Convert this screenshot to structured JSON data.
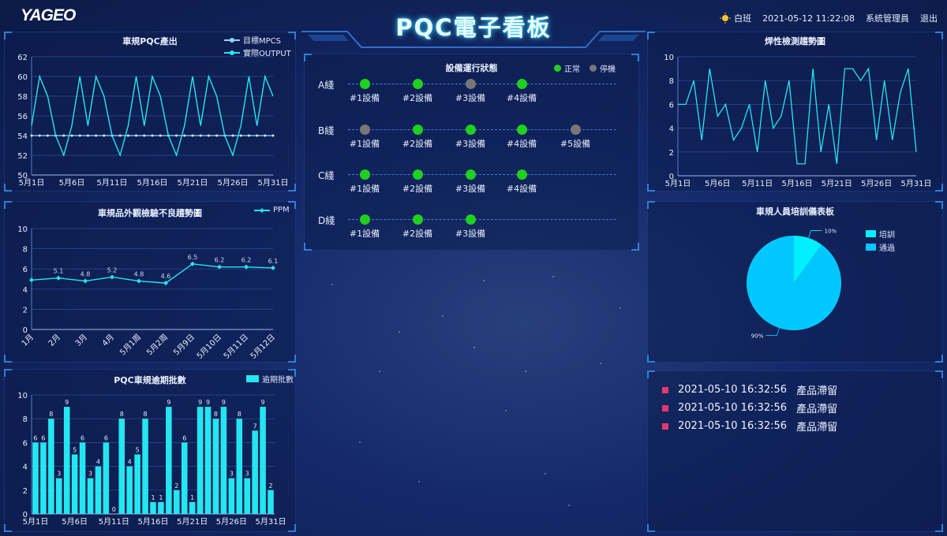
{
  "header": {
    "logo": "YAGEO",
    "title": "PQC電子看板",
    "shift": "白班",
    "datetime": "2021-05-12 11:22:08",
    "user": "系統管理員",
    "logout": "退出"
  },
  "colors": {
    "accent": "#24e6f0",
    "normal": "#1fd01f",
    "stopped": "#777777",
    "alert": "#e8386a",
    "pie_train": "#00f0ff",
    "pie_pass": "#00c8ff"
  },
  "panels": {
    "output": {
      "title": "車規PQC產出",
      "legend": [
        "目標MPCS",
        "實際OUTPUT"
      ],
      "chart_data": {
        "type": "line",
        "x": [
          "5月1日",
          "5月2日",
          "5月3日",
          "5月4日",
          "5月5日",
          "5月6日",
          "5月7日",
          "5月8日",
          "5月9日",
          "5月10日",
          "5月11日",
          "5月12日",
          "5月13日",
          "5月14日",
          "5月15日",
          "5月16日",
          "5月17日",
          "5月18日",
          "5月19日",
          "5月20日",
          "5月21日",
          "5月22日",
          "5月23日",
          "5月24日",
          "5月25日",
          "5月26日",
          "5月27日",
          "5月28日",
          "5月29日",
          "5月30日",
          "5月31日"
        ],
        "xticks": [
          "5月1日",
          "5月6日",
          "5月11日",
          "5月16日",
          "5月21日",
          "5月26日",
          "5月31日"
        ],
        "ylim": [
          50,
          62
        ],
        "yticks": [
          50,
          52,
          54,
          56,
          58,
          60,
          62
        ],
        "series": [
          {
            "name": "目標MPCS",
            "values": [
              54,
              54,
              54,
              54,
              54,
              54,
              54,
              54,
              54,
              54,
              54,
              54,
              54,
              54,
              54,
              54,
              54,
              54,
              54,
              54,
              54,
              54,
              54,
              54,
              54,
              54,
              54,
              54,
              54,
              54,
              54
            ]
          },
          {
            "name": "實際OUTPUT",
            "values": [
              55,
              60,
              58,
              54,
              52,
              55,
              60,
              55,
              60,
              58,
              54,
              52,
              55,
              60,
              55,
              60,
              58,
              54,
              52,
              55,
              60,
              55,
              60,
              58,
              54,
              52,
              55,
              60,
              55,
              60,
              58
            ]
          }
        ]
      }
    },
    "ppm": {
      "title": "車規品外觀檢驗不良趨勢圖",
      "legend": [
        "PPM"
      ],
      "chart_data": {
        "type": "line",
        "x": [
          "1月",
          "2月",
          "3月",
          "4月",
          "5月1周",
          "5月2周",
          "5月9日",
          "5月10日",
          "5月11日",
          "5月12日"
        ],
        "ylim": [
          0,
          10
        ],
        "yticks": [
          0,
          2,
          4,
          6,
          8,
          10
        ],
        "series": [
          {
            "name": "PPM",
            "values": [
              4.9,
              5.1,
              4.8,
              5.2,
              4.8,
              4.6,
              6.5,
              6.2,
              6.2,
              6.1
            ],
            "labels": [
              "",
              "5.1",
              "4.8",
              "5.2",
              "4.8",
              "4.6",
              "6.5",
              "6.2",
              "6.2",
              "6.1"
            ]
          }
        ]
      }
    },
    "overdue": {
      "title": "PQC車規逾期批數",
      "legend": [
        "逾期批數"
      ],
      "chart_data": {
        "type": "bar",
        "xticks": [
          "5月1日",
          "5月6日",
          "5月11日",
          "5月16日",
          "5月21日",
          "5月26日",
          "5月31日"
        ],
        "ylim": [
          0,
          10
        ],
        "yticks": [
          0,
          2,
          4,
          6,
          8,
          10
        ],
        "series": [
          {
            "name": "逾期批數",
            "values": [
              6,
              6,
              8,
              3,
              9,
              5,
              6,
              3,
              4,
              6,
              0,
              8,
              4,
              5,
              8,
              1,
              1,
              9,
              2,
              6,
              1,
              9,
              9,
              8,
              9,
              3,
              8,
              3,
              7,
              9,
              2
            ]
          }
        ]
      }
    },
    "status": {
      "title": "設備運行狀態",
      "legend_normal": "正常",
      "legend_stopped": "停機",
      "lines": [
        {
          "name": "A綫",
          "devices": [
            {
              "label": "#1設備",
              "state": "normal"
            },
            {
              "label": "#2設備",
              "state": "normal"
            },
            {
              "label": "#3設備",
              "state": "stopped"
            },
            {
              "label": "#4設備",
              "state": "normal"
            }
          ]
        },
        {
          "name": "B綫",
          "devices": [
            {
              "label": "#1設備",
              "state": "stopped"
            },
            {
              "label": "#2設備",
              "state": "normal"
            },
            {
              "label": "#3設備",
              "state": "normal"
            },
            {
              "label": "#4設備",
              "state": "normal"
            },
            {
              "label": "#5設備",
              "state": "stopped"
            }
          ]
        },
        {
          "name": "C綫",
          "devices": [
            {
              "label": "#1設備",
              "state": "normal"
            },
            {
              "label": "#2設備",
              "state": "normal"
            },
            {
              "label": "#3設備",
              "state": "normal"
            },
            {
              "label": "#4設備",
              "state": "normal"
            }
          ]
        },
        {
          "name": "D綫",
          "devices": [
            {
              "label": "#1設備",
              "state": "normal"
            },
            {
              "label": "#2設備",
              "state": "normal"
            },
            {
              "label": "#3設備",
              "state": "normal"
            }
          ]
        }
      ]
    },
    "solder": {
      "title": "焊性檢測趨勢圖",
      "chart_data": {
        "type": "line",
        "xticks": [
          "5月1日",
          "5月6日",
          "5月11日",
          "5月16日",
          "5月21日",
          "5月26日",
          "5月31日"
        ],
        "ylim": [
          0,
          10
        ],
        "yticks": [
          0,
          2,
          4,
          6,
          8,
          10
        ],
        "series": [
          {
            "name": "",
            "values": [
              6,
              6,
              8,
              3,
              9,
              5,
              6,
              3,
              4,
              6,
              2,
              8,
              4,
              5,
              8,
              1,
              1,
              9,
              2,
              6,
              1,
              9,
              9,
              8,
              9,
              3,
              8,
              3,
              7,
              9,
              2
            ]
          }
        ]
      }
    },
    "training": {
      "title": "車規人員培訓儀表板",
      "legend": [
        "培訓",
        "通過"
      ],
      "chart_data": {
        "type": "pie",
        "slices": [
          {
            "name": "培訓",
            "value": 10,
            "label": "10%"
          },
          {
            "name": "通過",
            "value": 90,
            "label": "90%"
          }
        ]
      }
    },
    "alerts": [
      {
        "time": "2021-05-10 16:32:56",
        "msg": "產品滯留"
      },
      {
        "time": "2021-05-10 16:32:56",
        "msg": "產品滯留"
      },
      {
        "time": "2021-05-10 16:32:56",
        "msg": "產品滯留"
      }
    ]
  }
}
